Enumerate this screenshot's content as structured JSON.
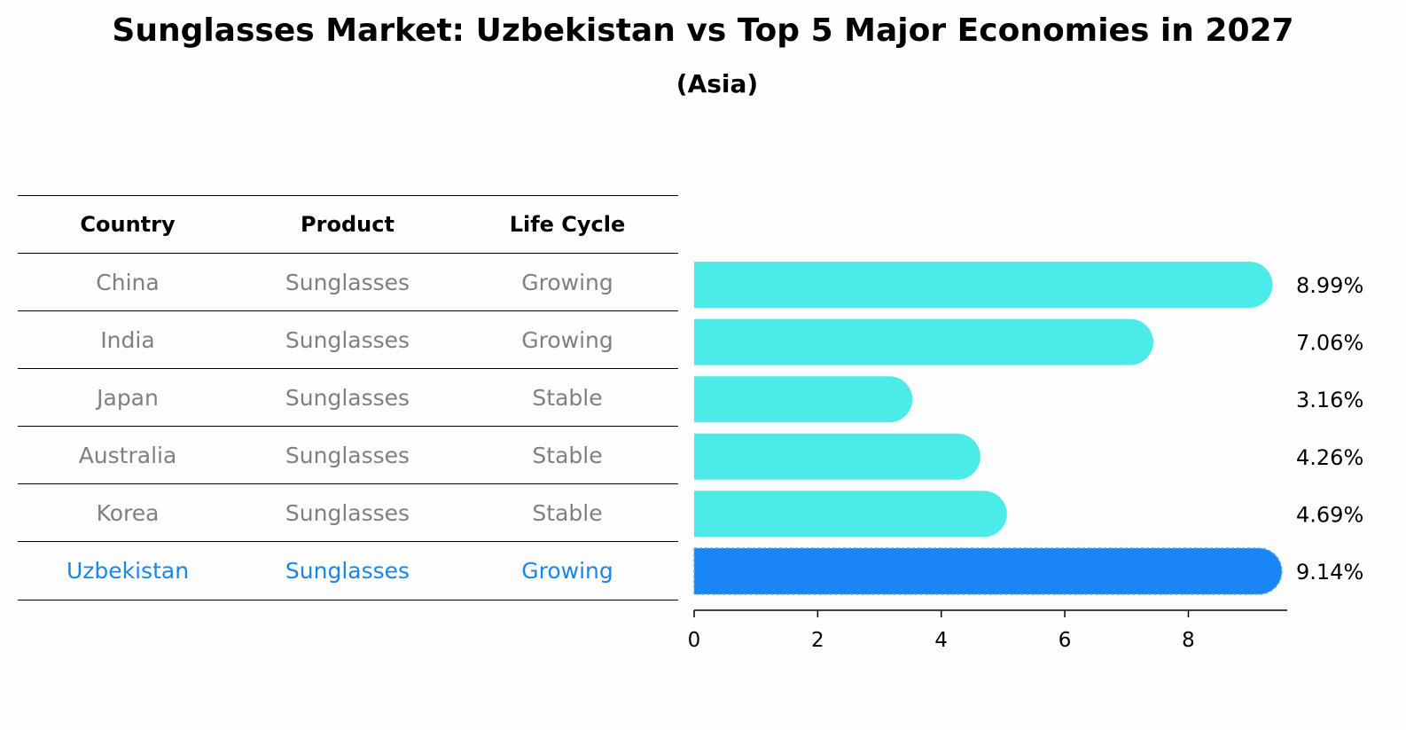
{
  "title": "Sunglasses Market: Uzbekistan vs Top 5 Major Economies in 2027",
  "subtitle": "(Asia)",
  "table": {
    "headers": [
      "Country",
      "Product",
      "Life Cycle"
    ],
    "rows": [
      [
        "China",
        "Sunglasses",
        "Growing"
      ],
      [
        "India",
        "Sunglasses",
        "Growing"
      ],
      [
        "Japan",
        "Sunglasses",
        "Stable"
      ],
      [
        "Australia",
        "Sunglasses",
        "Stable"
      ],
      [
        "Korea",
        "Sunglasses",
        "Stable"
      ],
      [
        "Uzbekistan",
        "Sunglasses",
        "Growing"
      ]
    ],
    "highlight_row": 5
  },
  "chart_data": {
    "type": "bar",
    "orientation": "horizontal",
    "categories": [
      "China",
      "India",
      "Japan",
      "Australia",
      "Korea",
      "Uzbekistan"
    ],
    "values": [
      8.99,
      7.06,
      3.16,
      4.26,
      4.69,
      9.14
    ],
    "value_labels": [
      "8.99%",
      "7.06%",
      "3.16%",
      "4.26%",
      "4.69%",
      "9.14%"
    ],
    "xlim": [
      0,
      9.6
    ],
    "xticks": [
      0,
      2,
      4,
      6,
      8
    ],
    "grid": false,
    "colors": {
      "default": "#4deaea",
      "highlight": "#1a86f5"
    },
    "highlight_index": 5
  }
}
